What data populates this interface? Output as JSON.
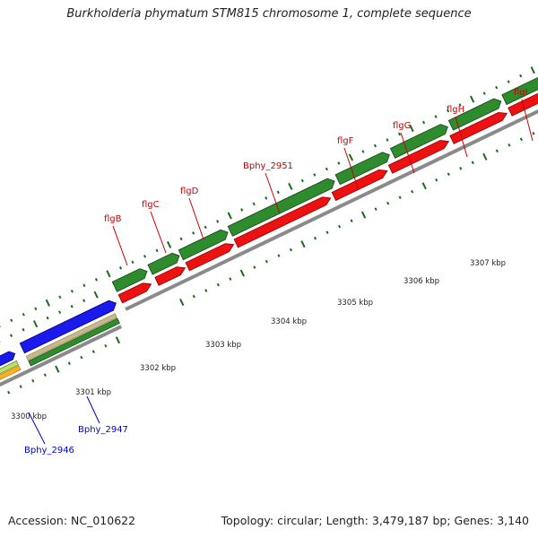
{
  "title": "Burkholderia phymatum STM815 chromosome 1, complete sequence",
  "footer": {
    "accession": "Accession: NC_010622",
    "topology": "Topology: circular; Length: 3,479,187 bp; Genes: 3,140"
  },
  "colors": {
    "backbone": "#8a8a8a",
    "forward_cds": "#2e8b2e",
    "reverse_cds": "#ee1111",
    "blue_cds": "#1a1aee",
    "tick": "#1a6b1a",
    "label_red": "#cc0000",
    "label_blue": "#0000cc"
  },
  "ticks": [
    {
      "kbp": 3300,
      "label": "3300 kbp"
    },
    {
      "kbp": 3301,
      "label": "3301 kbp"
    },
    {
      "kbp": 3302,
      "label": "3302 kbp"
    },
    {
      "kbp": 3303,
      "label": "3303 kbp"
    },
    {
      "kbp": 3304,
      "label": "3304 kbp"
    },
    {
      "kbp": 3305,
      "label": "3305 kbp"
    },
    {
      "kbp": 3306,
      "label": "3306 kbp"
    },
    {
      "kbp": 3307,
      "label": "3307 kbp"
    }
  ],
  "gene_labels": [
    {
      "text": "flgB",
      "color": "red"
    },
    {
      "text": "flgC",
      "color": "red"
    },
    {
      "text": "flgD",
      "color": "red"
    },
    {
      "text": "Bphy_2951",
      "color": "red"
    },
    {
      "text": "flgF",
      "color": "red"
    },
    {
      "text": "flgG",
      "color": "red"
    },
    {
      "text": "flgH",
      "color": "red"
    },
    {
      "text": "flgI",
      "color": "red"
    },
    {
      "text": "Bphy_2947",
      "color": "blue"
    },
    {
      "text": "Bphy_2946",
      "color": "blue"
    }
  ]
}
